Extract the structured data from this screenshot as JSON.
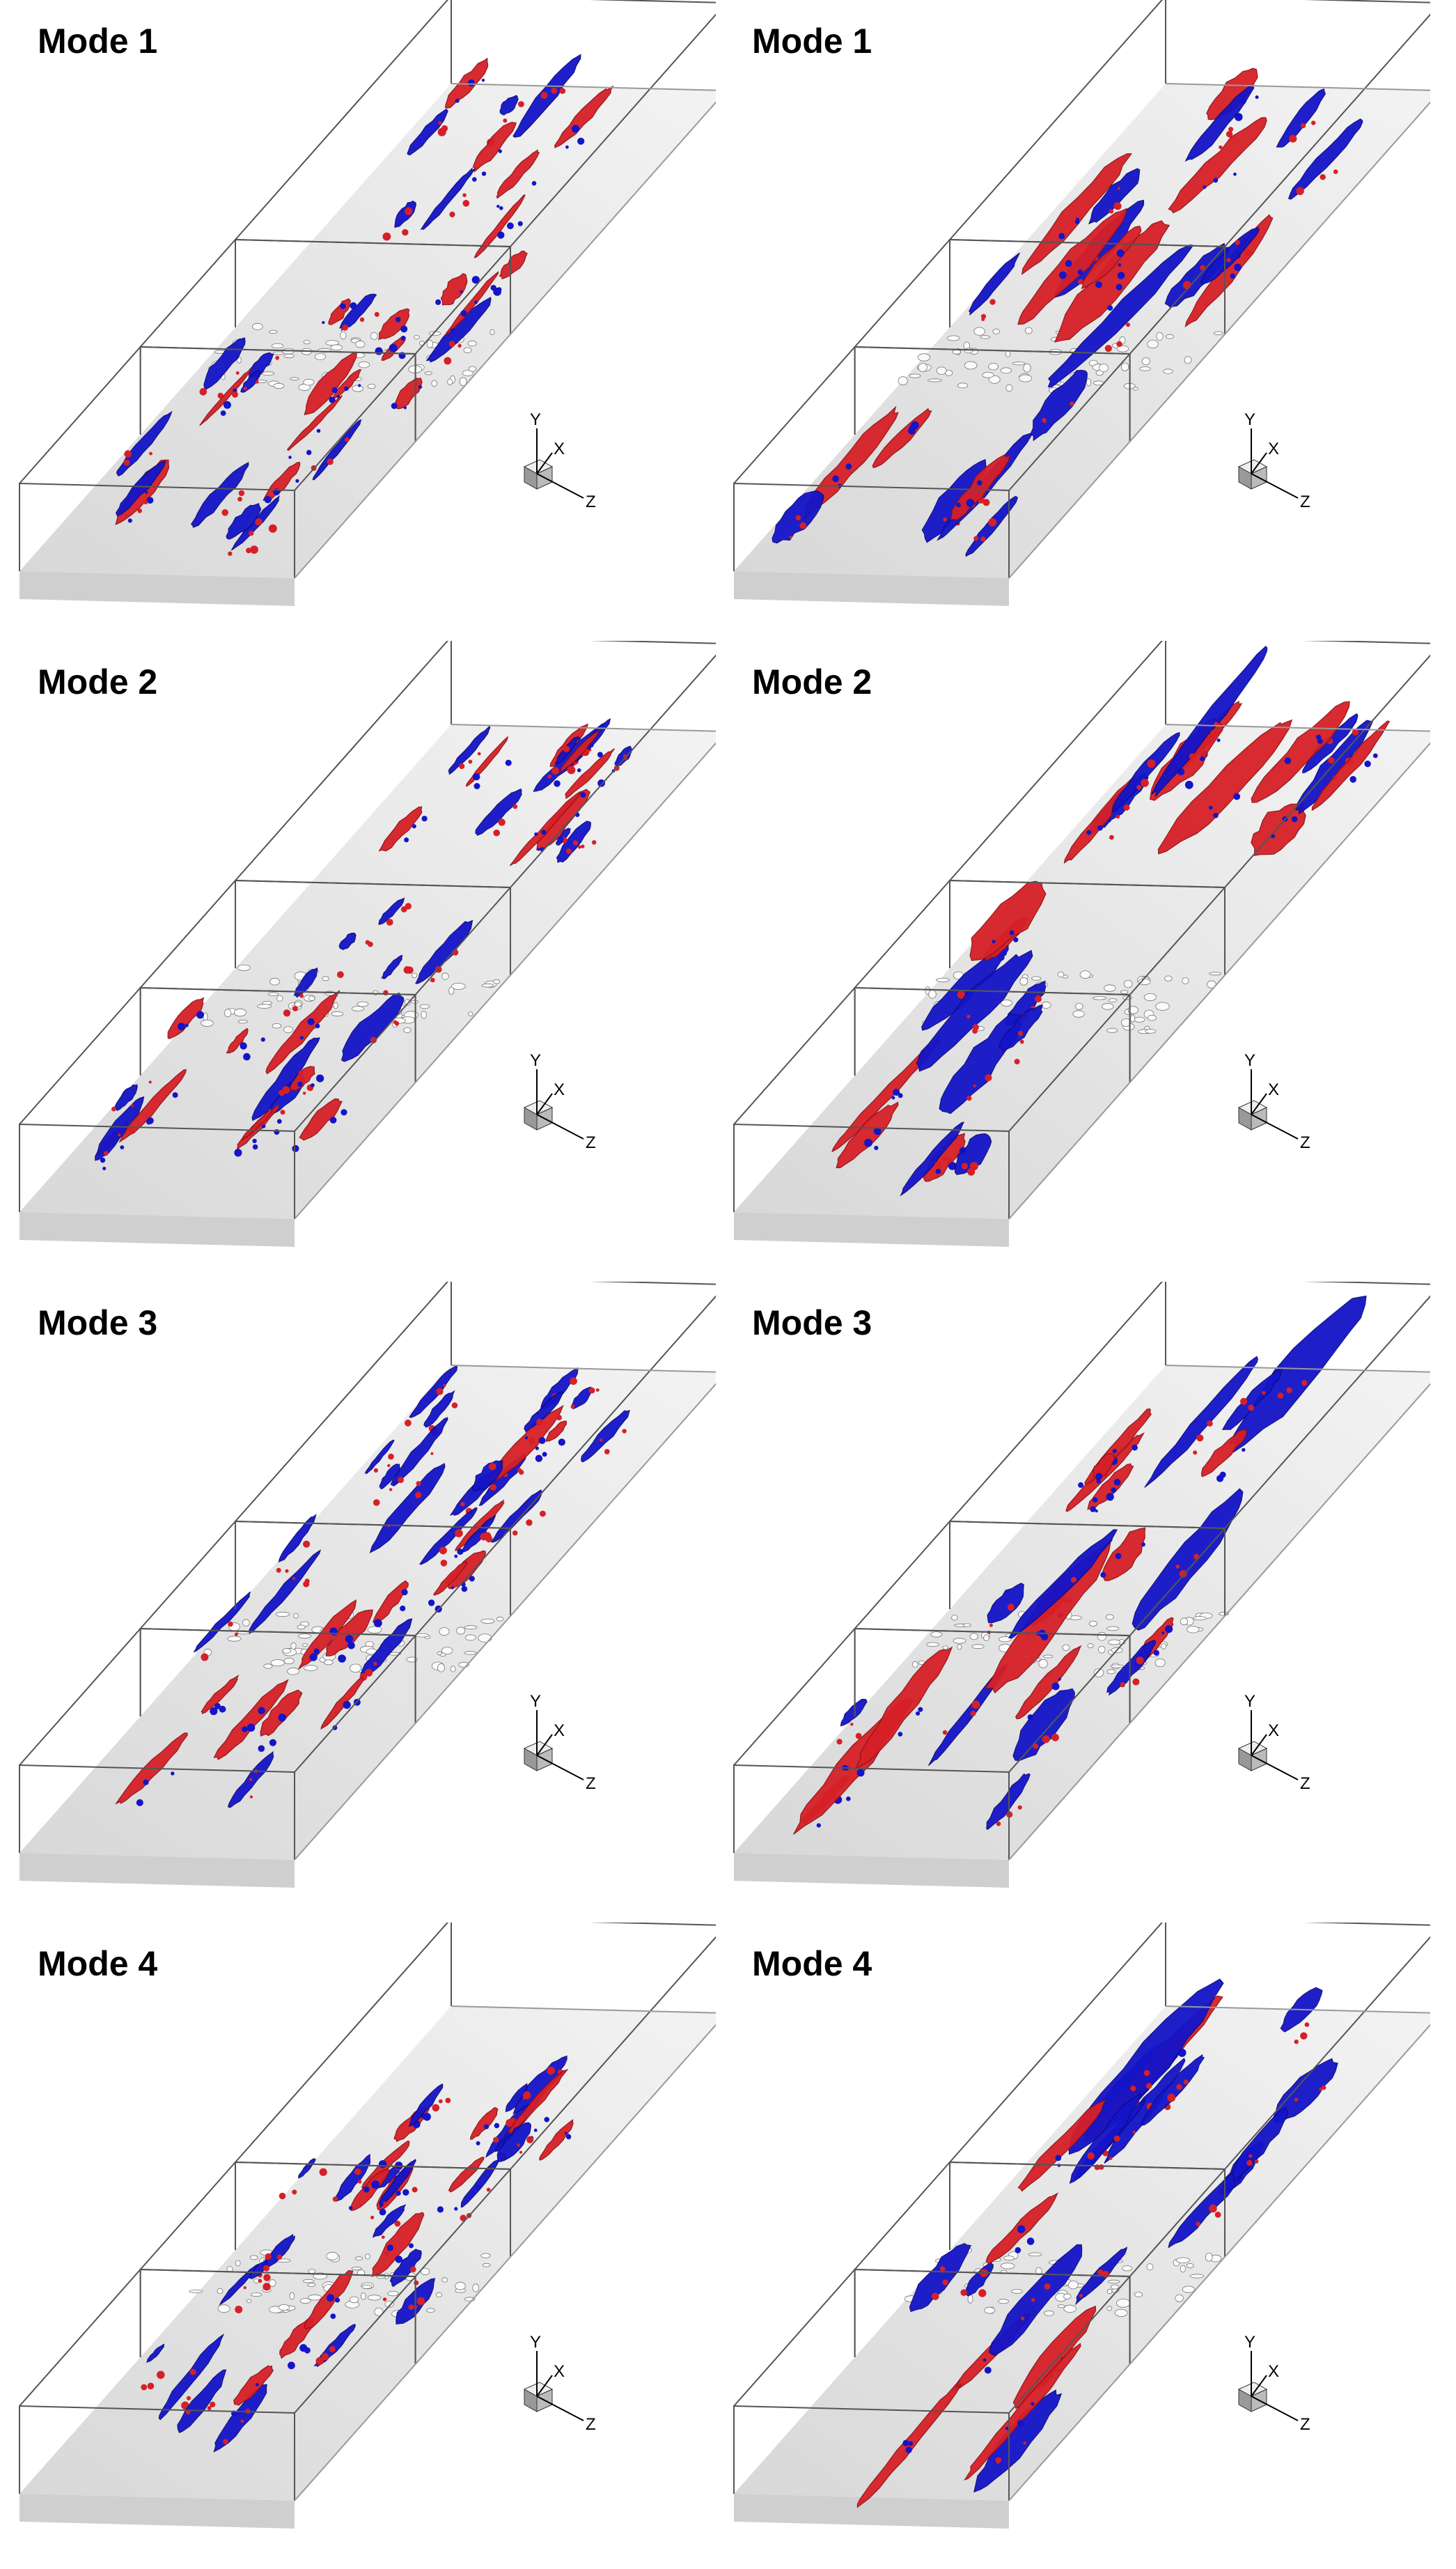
{
  "panels": [
    {
      "title": "Mode 1",
      "variant": "a"
    },
    {
      "title": "Mode 1",
      "variant": "b"
    },
    {
      "title": "Mode 2",
      "variant": "a"
    },
    {
      "title": "Mode 2",
      "variant": "b"
    },
    {
      "title": "Mode 3",
      "variant": "a"
    },
    {
      "title": "Mode 3",
      "variant": "b"
    },
    {
      "title": "Mode 4",
      "variant": "a"
    },
    {
      "title": "Mode 4",
      "variant": "b"
    }
  ],
  "axes": {
    "y": "Y",
    "x": "X",
    "z": "Z"
  },
  "colors": {
    "positive": "#d62027",
    "negative": "#1414c8",
    "surface": "#e4e4e4",
    "frame": "#555555",
    "roughness": "#bdbdbd"
  }
}
